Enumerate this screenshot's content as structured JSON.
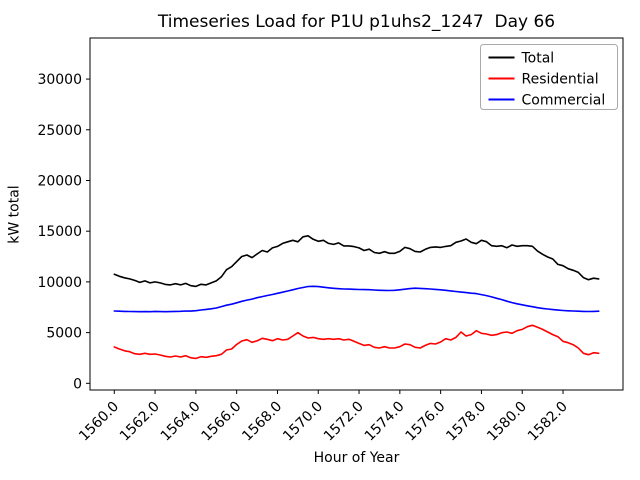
{
  "chart_data": {
    "type": "line",
    "title": "Timeseries Load for P1U p1uhs2_1247  Day 66",
    "xlabel": "Hour of Year",
    "ylabel": "kW total",
    "grid": false,
    "background_color": "#ffffff",
    "xlim": [
      1558.81,
      1584.94
    ],
    "ylim": [
      -660,
      34050
    ],
    "x_ticks": {
      "values": [
        1560,
        1562,
        1564,
        1566,
        1568,
        1570,
        1572,
        1574,
        1576,
        1578,
        1580,
        1582
      ],
      "labels": [
        "1560.0",
        "1562.0",
        "1564.0",
        "1566.0",
        "1568.0",
        "1570.0",
        "1572.0",
        "1574.0",
        "1576.0",
        "1578.0",
        "1580.0",
        "1582.0"
      ],
      "rotation_deg": 45
    },
    "y_ticks": {
      "values": [
        0,
        5000,
        10000,
        15000,
        20000,
        25000,
        30000
      ],
      "labels": [
        "0",
        "5000",
        "10000",
        "15000",
        "20000",
        "25000",
        "30000"
      ]
    },
    "x_start": 1560.0,
    "x_step": 0.25,
    "legend": {
      "location": "upper right",
      "entries": [
        "Total",
        "Residential",
        "Commercial"
      ]
    },
    "series": [
      {
        "name": "Total",
        "color": "#000000",
        "values": [
          10750,
          10550,
          10400,
          10300,
          10150,
          9950,
          10100,
          9900,
          10000,
          9900,
          9750,
          9700,
          9820,
          9700,
          9850,
          9620,
          9560,
          9760,
          9700,
          9900,
          10100,
          10500,
          11200,
          11500,
          12000,
          12500,
          12650,
          12400,
          12750,
          13100,
          12950,
          13350,
          13500,
          13800,
          13950,
          14100,
          13950,
          14450,
          14550,
          14200,
          14000,
          14100,
          13800,
          13700,
          13850,
          13550,
          13550,
          13480,
          13350,
          13100,
          13220,
          12900,
          12820,
          12980,
          12820,
          12820,
          13010,
          13400,
          13270,
          13010,
          12950,
          13210,
          13400,
          13450,
          13400,
          13500,
          13570,
          13900,
          14030,
          14230,
          13900,
          13770,
          14100,
          13960,
          13570,
          13510,
          13570,
          13370,
          13640,
          13510,
          13570,
          13570,
          13510,
          13040,
          12720,
          12450,
          12260,
          11730,
          11600,
          11300,
          11140,
          10940,
          10420,
          10220,
          10360,
          10300
        ]
      },
      {
        "name": "Residential",
        "color": "#ff0000",
        "values": [
          3580,
          3380,
          3210,
          3120,
          2920,
          2860,
          2960,
          2860,
          2890,
          2790,
          2660,
          2590,
          2690,
          2590,
          2720,
          2520,
          2460,
          2620,
          2560,
          2660,
          2720,
          2860,
          3280,
          3380,
          3840,
          4170,
          4300,
          4040,
          4180,
          4440,
          4340,
          4200,
          4400,
          4270,
          4340,
          4660,
          4990,
          4660,
          4470,
          4530,
          4400,
          4340,
          4400,
          4340,
          4400,
          4270,
          4340,
          4140,
          3940,
          3740,
          3810,
          3550,
          3480,
          3610,
          3480,
          3480,
          3610,
          3880,
          3810,
          3550,
          3480,
          3740,
          3940,
          3880,
          4070,
          4400,
          4270,
          4530,
          5060,
          4660,
          4800,
          5190,
          4930,
          4860,
          4730,
          4800,
          4990,
          5060,
          4930,
          5190,
          5320,
          5580,
          5720,
          5520,
          5320,
          5060,
          4800,
          4600,
          4140,
          4000,
          3810,
          3480,
          2960,
          2820,
          3020,
          2960
        ]
      },
      {
        "name": "Commercial",
        "color": "#0000ff",
        "values": [
          7130,
          7110,
          7090,
          7080,
          7070,
          7060,
          7070,
          7060,
          7090,
          7070,
          7060,
          7070,
          7090,
          7100,
          7130,
          7120,
          7160,
          7230,
          7290,
          7350,
          7430,
          7560,
          7700,
          7800,
          7940,
          8090,
          8200,
          8300,
          8440,
          8550,
          8660,
          8760,
          8880,
          8980,
          9100,
          9220,
          9350,
          9450,
          9550,
          9570,
          9540,
          9480,
          9420,
          9370,
          9330,
          9300,
          9290,
          9270,
          9250,
          9240,
          9230,
          9200,
          9170,
          9160,
          9150,
          9170,
          9220,
          9280,
          9340,
          9380,
          9360,
          9330,
          9300,
          9260,
          9220,
          9170,
          9110,
          9050,
          8990,
          8940,
          8890,
          8850,
          8750,
          8650,
          8520,
          8380,
          8250,
          8100,
          7960,
          7840,
          7740,
          7640,
          7550,
          7460,
          7390,
          7330,
          7270,
          7220,
          7180,
          7150,
          7130,
          7110,
          7090,
          7080,
          7090,
          7110
        ]
      }
    ]
  }
}
